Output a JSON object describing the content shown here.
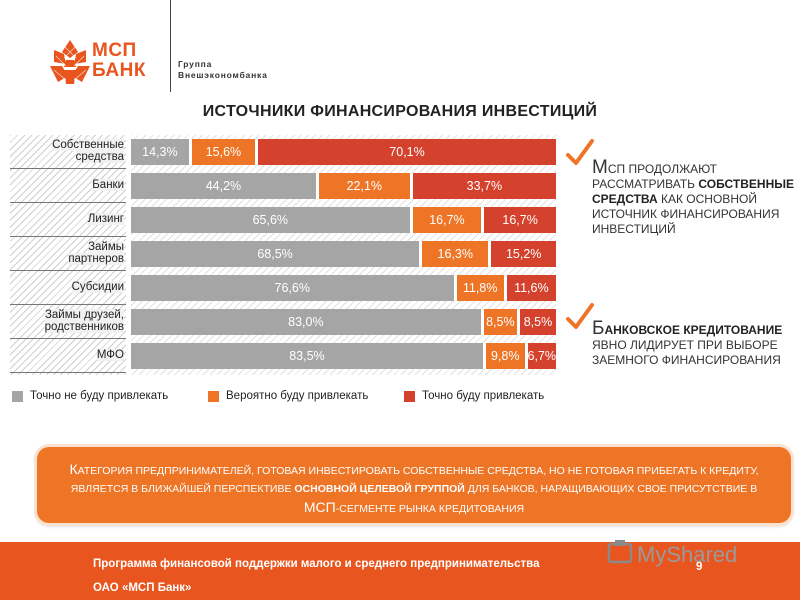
{
  "logo": {
    "line1": "МСП",
    "line2": "БАНК"
  },
  "group": {
    "line1": "Группа",
    "line2": "Внешэкономбанка"
  },
  "title": "ИСТОЧНИКИ ФИНАНСИРОВАНИЯ ИНВЕСТИЦИЙ",
  "chart_data": {
    "type": "bar",
    "stacked": true,
    "orientation": "horizontal",
    "unit": "%",
    "categories": [
      [
        "Собственные",
        "средства"
      ],
      [
        "Банки"
      ],
      [
        "Лизинг"
      ],
      [
        "Займы",
        "партнеров"
      ],
      [
        "Субсидии"
      ],
      [
        "Займы друзей,",
        "родственников"
      ],
      [
        "МФО"
      ]
    ],
    "series": [
      {
        "name": "Точно не буду привлекать",
        "color": "#a5a5a5",
        "values": [
          14.3,
          44.2,
          65.6,
          68.5,
          76.6,
          83.0,
          83.5
        ],
        "labels": [
          "14,3%",
          "44,2%",
          "65,6%",
          "68,5%",
          "76,6%",
          "83,0%",
          "83,5%"
        ]
      },
      {
        "name": "Вероятно буду привлекать",
        "color": "#ee7426",
        "values": [
          15.6,
          22.1,
          16.7,
          16.3,
          11.8,
          8.5,
          9.8
        ],
        "labels": [
          "15,6%",
          "22,1%",
          "16,7%",
          "16,3%",
          "11,8%",
          "8,5%",
          "9,8%"
        ]
      },
      {
        "name": "Точно буду привлекать",
        "color": "#d4422e",
        "values": [
          70.1,
          33.7,
          16.7,
          15.2,
          11.6,
          8.5,
          6.7
        ],
        "labels": [
          "70,1%",
          "33,7%",
          "16,7%",
          "15,2%",
          "11,6%",
          "8,5%",
          "6,7%"
        ]
      }
    ],
    "legend_position": "bottom"
  },
  "bullets": [
    {
      "first": "М",
      "rest_pre": "СП ПРОДОЛЖАЮТ РАССМАТРИВАТЬ ",
      "bold": "СОБСТВЕННЫЕ СРЕДСТВА",
      "rest_post": " КАК ОСНОВНОЙ ИСТОЧНИК ФИНАНСИРОВАНИЯ ИНВЕСТИЦИЙ"
    },
    {
      "first": "Б",
      "rest_pre": "",
      "bold": "АНКОВСКОЕ КРЕДИТОВАНИЕ",
      "rest_post": " ЯВНО ЛИДИРУЕТ ПРИ ВЫБОРЕ ЗАЕМНОГО ФИНАНСИРОВАНИЯ"
    }
  ],
  "callout": {
    "first": "К",
    "part1": "атегория предпринимателей, готовая инвестировать собственные средства, но не готовая прибегать к кредиту, является в ближайшей перспективе ",
    "bold": "основной целевой группой",
    "part2": " для банков, наращивающих свое присутствие в ",
    "big": "МСП",
    "part3": "-сегменте рынка кредитования"
  },
  "footer": {
    "line1": "Программа финансовой поддержки малого и среднего предпринимательства",
    "line2": "ОАО «МСП Банк»",
    "page": "9"
  },
  "watermark": {
    "text": "MyShared"
  },
  "colors": {
    "brand": "#e8551e",
    "gray": "#a5a5a5",
    "orange": "#ee7426",
    "red": "#d4422e"
  }
}
